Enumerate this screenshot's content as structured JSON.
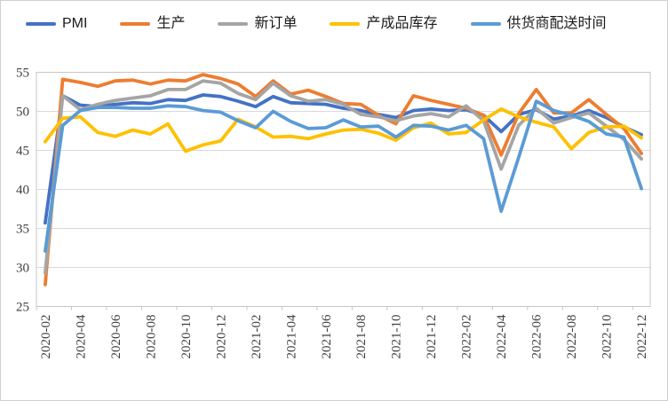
{
  "chart_data": {
    "type": "line",
    "legend_position": "top",
    "grid": "horizontal",
    "ylim": [
      25,
      55
    ],
    "y_tick_step": 5,
    "x_label_interval": 2,
    "grid_color": "#D9D9D9",
    "axis_color": "#C6C6C6",
    "tick_label_color": "#404040",
    "x": [
      "2020-02",
      "2020-03",
      "2020-04",
      "2020-05",
      "2020-06",
      "2020-07",
      "2020-08",
      "2020-09",
      "2020-10",
      "2020-11",
      "2020-12",
      "2021-01",
      "2021-02",
      "2021-03",
      "2021-04",
      "2021-05",
      "2021-06",
      "2021-07",
      "2021-08",
      "2021-09",
      "2021-10",
      "2021-11",
      "2021-12",
      "2022-01",
      "2022-02",
      "2022-03",
      "2022-04",
      "2022-05",
      "2022-06",
      "2022-07",
      "2022-08",
      "2022-09",
      "2022-10",
      "2022-11",
      "2022-12"
    ],
    "shown_x_tick_labels": [
      "2020-02",
      "2020-04",
      "2020-06",
      "2020-08",
      "2020-10",
      "2020-12",
      "2021-02",
      "2021-04",
      "2021-06",
      "2021-08",
      "2021-10",
      "2021-12",
      "2022-02",
      "2022-04",
      "2022-06",
      "2022-08",
      "2022-10",
      "2022-12"
    ],
    "y_tick_labels": [
      "25",
      "30",
      "35",
      "40",
      "45",
      "50",
      "55"
    ],
    "series": [
      {
        "name": "PMI",
        "color": "#4472C4",
        "values": [
          35.7,
          52.0,
          50.8,
          50.6,
          50.9,
          51.1,
          51.0,
          51.5,
          51.4,
          52.1,
          51.9,
          51.3,
          50.6,
          51.9,
          51.1,
          51.0,
          50.9,
          50.4,
          50.1,
          49.6,
          49.2,
          50.1,
          50.3,
          50.1,
          50.2,
          49.5,
          47.4,
          49.6,
          50.2,
          49.0,
          49.4,
          50.1,
          49.2,
          48.0,
          47.0
        ]
      },
      {
        "name": "生产",
        "color": "#ED7D31",
        "values": [
          27.8,
          54.1,
          53.7,
          53.2,
          53.9,
          54.0,
          53.5,
          54.0,
          53.9,
          54.7,
          54.2,
          53.5,
          51.9,
          53.9,
          52.2,
          52.7,
          51.9,
          51.0,
          50.9,
          49.5,
          48.4,
          52.0,
          51.4,
          50.9,
          50.4,
          49.5,
          44.4,
          49.7,
          52.8,
          49.8,
          49.8,
          51.5,
          49.6,
          47.8,
          44.6
        ]
      },
      {
        "name": "新订单",
        "color": "#A5A5A5",
        "values": [
          29.3,
          52.0,
          50.2,
          50.9,
          51.4,
          51.7,
          52.0,
          52.8,
          52.8,
          53.9,
          53.6,
          52.3,
          51.5,
          53.6,
          52.0,
          51.3,
          51.5,
          50.9,
          49.6,
          49.3,
          48.8,
          49.4,
          49.7,
          49.3,
          50.7,
          48.8,
          42.6,
          48.2,
          50.4,
          48.5,
          49.2,
          49.8,
          48.1,
          46.4,
          43.9
        ]
      },
      {
        "name": "产成品库存",
        "color": "#FFC000",
        "values": [
          46.1,
          49.1,
          49.3,
          47.3,
          46.8,
          47.6,
          47.1,
          48.4,
          44.9,
          45.7,
          46.2,
          49.0,
          48.0,
          46.7,
          46.8,
          46.5,
          47.1,
          47.6,
          47.7,
          47.2,
          46.3,
          47.9,
          48.5,
          47.1,
          47.3,
          48.9,
          50.3,
          49.3,
          48.6,
          48.0,
          45.2,
          47.3,
          48.0,
          48.1,
          46.6
        ]
      },
      {
        "name": "供货商配送时间",
        "color": "#5B9BD5",
        "values": [
          32.1,
          48.2,
          50.1,
          50.5,
          50.5,
          50.4,
          50.4,
          50.7,
          50.6,
          50.1,
          49.9,
          48.8,
          47.9,
          50.0,
          48.7,
          47.8,
          47.9,
          48.9,
          48.0,
          48.1,
          46.7,
          48.2,
          48.1,
          47.6,
          48.2,
          46.5,
          37.2,
          44.1,
          51.3,
          50.1,
          49.5,
          48.7,
          47.1,
          46.7,
          40.1
        ]
      }
    ]
  }
}
